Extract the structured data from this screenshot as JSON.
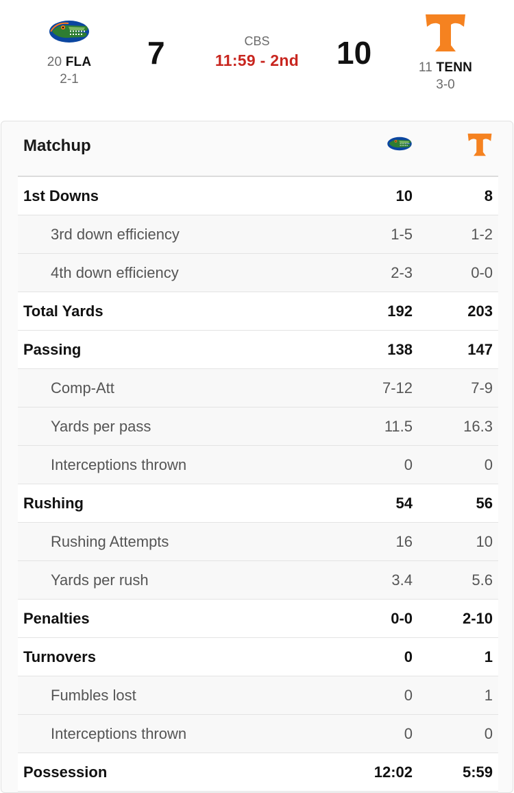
{
  "game": {
    "network": "CBS",
    "clock": "11:59 - 2nd",
    "away": {
      "rank": "20",
      "abbr": "FLA",
      "record": "2-1",
      "score": "7",
      "logo": "gator-logo"
    },
    "home": {
      "rank": "11",
      "abbr": "TENN",
      "record": "3-0",
      "score": "10",
      "logo": "power-t-logo"
    }
  },
  "colors": {
    "clock": "#c8261f",
    "tennessee_orange": "#f58220",
    "florida_blue": "#0b46a0",
    "gator_green": "#2e7d32"
  },
  "matchup": {
    "title": "Matchup",
    "rows": [
      {
        "label": "1st Downs",
        "away": "10",
        "home": "8",
        "kind": "main"
      },
      {
        "label": "3rd down efficiency",
        "away": "1-5",
        "home": "1-2",
        "kind": "sub"
      },
      {
        "label": "4th down efficiency",
        "away": "2-3",
        "home": "0-0",
        "kind": "sub"
      },
      {
        "label": "Total Yards",
        "away": "192",
        "home": "203",
        "kind": "main"
      },
      {
        "label": "Passing",
        "away": "138",
        "home": "147",
        "kind": "main"
      },
      {
        "label": "Comp-Att",
        "away": "7-12",
        "home": "7-9",
        "kind": "sub"
      },
      {
        "label": "Yards per pass",
        "away": "11.5",
        "home": "16.3",
        "kind": "sub"
      },
      {
        "label": "Interceptions thrown",
        "away": "0",
        "home": "0",
        "kind": "sub"
      },
      {
        "label": "Rushing",
        "away": "54",
        "home": "56",
        "kind": "main"
      },
      {
        "label": "Rushing Attempts",
        "away": "16",
        "home": "10",
        "kind": "sub"
      },
      {
        "label": "Yards per rush",
        "away": "3.4",
        "home": "5.6",
        "kind": "sub"
      },
      {
        "label": "Penalties",
        "away": "0-0",
        "home": "2-10",
        "kind": "main"
      },
      {
        "label": "Turnovers",
        "away": "0",
        "home": "1",
        "kind": "main"
      },
      {
        "label": "Fumbles lost",
        "away": "0",
        "home": "1",
        "kind": "sub"
      },
      {
        "label": "Interceptions thrown",
        "away": "0",
        "home": "0",
        "kind": "sub"
      },
      {
        "label": "Possession",
        "away": "12:02",
        "home": "5:59",
        "kind": "main"
      }
    ]
  }
}
